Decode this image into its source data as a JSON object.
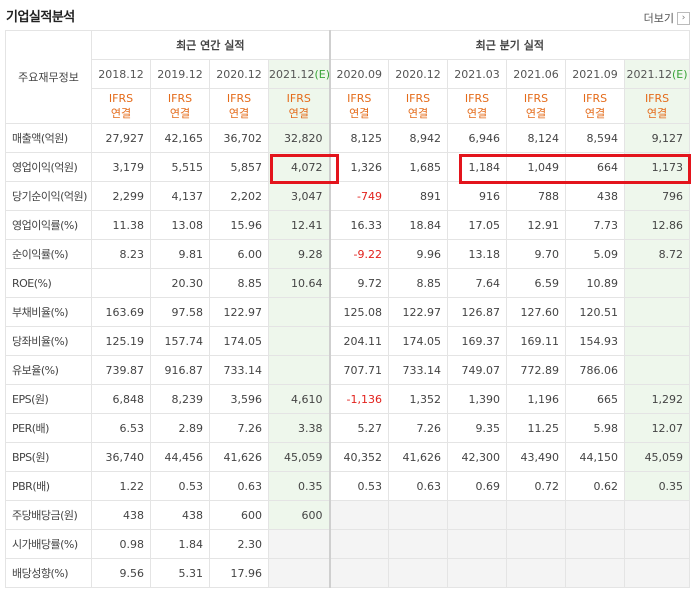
{
  "title": "기업실적분석",
  "more_label": "더보기",
  "more_icon": "chevron-right-icon",
  "header_label": "주요재무정보",
  "annual_group": "최근 연간 실적",
  "quarter_group": "최근 분기 실적",
  "annual_periods": [
    "2018.12",
    "2019.12",
    "2020.12",
    "2021.12"
  ],
  "quarter_periods": [
    "2020.09",
    "2020.12",
    "2021.03",
    "2021.06",
    "2021.09",
    "2021.12"
  ],
  "estimate_mark": "(E)",
  "ifrs_line1": "IFRS",
  "ifrs_line2": "연결",
  "highlight_color": "#e3141c",
  "negative_color": "#e2211c",
  "rows": [
    {
      "label": "매출액(억원)",
      "annual": [
        "27,927",
        "42,165",
        "36,702",
        "32,820"
      ],
      "quarter": [
        "8,125",
        "8,942",
        "6,946",
        "8,124",
        "8,594",
        "9,127"
      ]
    },
    {
      "label": "영업이익(억원)",
      "annual": [
        "3,179",
        "5,515",
        "5,857",
        "4,072"
      ],
      "quarter": [
        "1,326",
        "1,685",
        "1,184",
        "1,049",
        "664",
        "1,173"
      ]
    },
    {
      "label": "당기순이익(억원)",
      "annual": [
        "2,299",
        "4,137",
        "2,202",
        "3,047"
      ],
      "quarter": [
        "-749",
        "891",
        "916",
        "788",
        "438",
        "796"
      ]
    },
    {
      "label": "영업이익률(%)",
      "annual": [
        "11.38",
        "13.08",
        "15.96",
        "12.41"
      ],
      "quarter": [
        "16.33",
        "18.84",
        "17.05",
        "12.91",
        "7.73",
        "12.86"
      ]
    },
    {
      "label": "순이익률(%)",
      "annual": [
        "8.23",
        "9.81",
        "6.00",
        "9.28"
      ],
      "quarter": [
        "-9.22",
        "9.96",
        "13.18",
        "9.70",
        "5.09",
        "8.72"
      ]
    },
    {
      "label": "ROE(%)",
      "annual": [
        "",
        "20.30",
        "8.85",
        "10.64"
      ],
      "quarter": [
        "9.72",
        "8.85",
        "7.64",
        "6.59",
        "10.89",
        ""
      ]
    },
    {
      "label": "부채비율(%)",
      "annual": [
        "163.69",
        "97.58",
        "122.97",
        ""
      ],
      "quarter": [
        "125.08",
        "122.97",
        "126.87",
        "127.60",
        "120.51",
        ""
      ]
    },
    {
      "label": "당좌비율(%)",
      "annual": [
        "125.19",
        "157.74",
        "174.05",
        ""
      ],
      "quarter": [
        "204.11",
        "174.05",
        "169.37",
        "169.11",
        "154.93",
        ""
      ]
    },
    {
      "label": "유보율(%)",
      "annual": [
        "739.87",
        "916.87",
        "733.14",
        ""
      ],
      "quarter": [
        "707.71",
        "733.14",
        "749.07",
        "772.89",
        "786.06",
        ""
      ]
    },
    {
      "label": "EPS(원)",
      "annual": [
        "6,848",
        "8,239",
        "3,596",
        "4,610"
      ],
      "quarter": [
        "-1,136",
        "1,352",
        "1,390",
        "1,196",
        "665",
        "1,292"
      ]
    },
    {
      "label": "PER(배)",
      "annual": [
        "6.53",
        "2.89",
        "7.26",
        "3.38"
      ],
      "quarter": [
        "5.27",
        "7.26",
        "9.35",
        "11.25",
        "5.98",
        "12.07"
      ]
    },
    {
      "label": "BPS(원)",
      "annual": [
        "36,740",
        "44,456",
        "41,626",
        "45,059"
      ],
      "quarter": [
        "40,352",
        "41,626",
        "42,300",
        "43,490",
        "44,150",
        "45,059"
      ]
    },
    {
      "label": "PBR(배)",
      "annual": [
        "1.22",
        "0.53",
        "0.63",
        "0.35"
      ],
      "quarter": [
        "0.53",
        "0.63",
        "0.69",
        "0.72",
        "0.62",
        "0.35"
      ]
    },
    {
      "label": "주당배당금(원)",
      "annual": [
        "438",
        "438",
        "600",
        "600"
      ],
      "quarter": [
        "",
        "",
        "",
        "",
        "",
        ""
      ]
    },
    {
      "label": "시가배당률(%)",
      "annual": [
        "0.98",
        "1.84",
        "2.30",
        ""
      ],
      "quarter": [
        "",
        "",
        "",
        "",
        "",
        ""
      ]
    },
    {
      "label": "배당성향(%)",
      "annual": [
        "9.56",
        "5.31",
        "17.96",
        ""
      ],
      "quarter": [
        "",
        "",
        "",
        "",
        "",
        ""
      ]
    }
  ]
}
